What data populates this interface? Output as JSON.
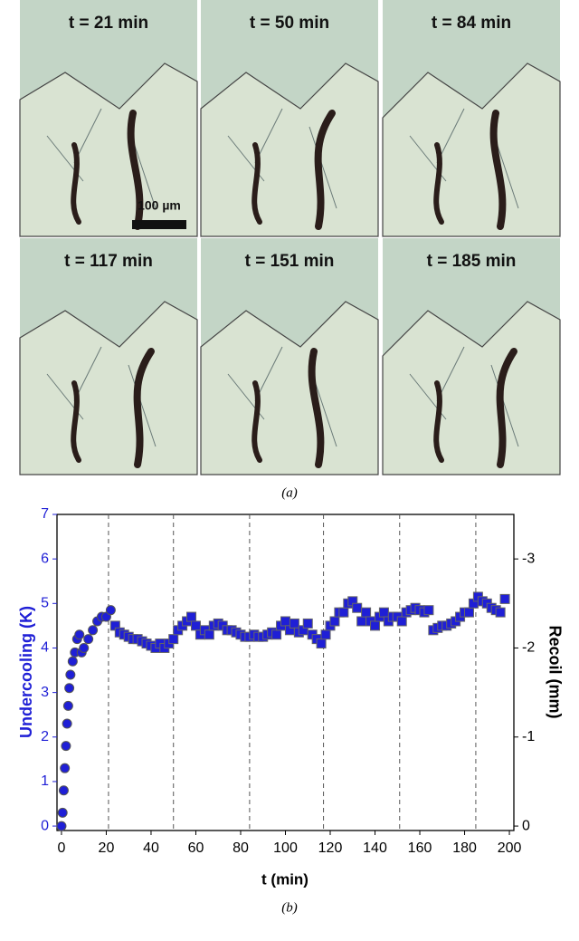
{
  "panel_a": {
    "images": [
      {
        "label": "t = 21 min"
      },
      {
        "label": "t = 50 min"
      },
      {
        "label": "t = 84 min"
      },
      {
        "label": "t = 117 min"
      },
      {
        "label": "t = 151 min"
      },
      {
        "label": "t = 185 min"
      }
    ],
    "scale_bar": "100 µm",
    "caption": "(a)"
  },
  "panel_b_caption": "(b)",
  "chart_data": {
    "type": "scatter",
    "xlabel": "t (min)",
    "ylabel": "Undercooling (K)",
    "y2label": "Recoil (mm)",
    "color": "#1f1fd6",
    "x": [
      0,
      0.5,
      1,
      1.5,
      2,
      2.5,
      3,
      3.5,
      4,
      5,
      6,
      7,
      8,
      9,
      10,
      12,
      14,
      16,
      18,
      20,
      22,
      24,
      26,
      28,
      30,
      32,
      34,
      36,
      38,
      40,
      42,
      44,
      46,
      48,
      50,
      52,
      54,
      56,
      58,
      60,
      62,
      64,
      66,
      68,
      70,
      72,
      74,
      76,
      78,
      80,
      82,
      84,
      86,
      88,
      90,
      92,
      94,
      96,
      98,
      100,
      102,
      104,
      106,
      108,
      110,
      112,
      114,
      116,
      118,
      120,
      122,
      124,
      126,
      128,
      130,
      132,
      134,
      136,
      138,
      140,
      142,
      144,
      146,
      148,
      150,
      152,
      154,
      156,
      158,
      160,
      162,
      164,
      166,
      168,
      170,
      172,
      174,
      176,
      178,
      180,
      182,
      184,
      186,
      188,
      190,
      192,
      194,
      196,
      198
    ],
    "values": [
      0,
      0.3,
      0.8,
      1.3,
      1.8,
      2.3,
      2.7,
      3.1,
      3.4,
      3.7,
      3.9,
      4.2,
      4.3,
      3.9,
      4.0,
      4.2,
      4.4,
      4.6,
      4.7,
      4.7,
      4.85,
      4.5,
      4.35,
      4.3,
      4.25,
      4.2,
      4.2,
      4.15,
      4.1,
      4.05,
      4.0,
      4.1,
      4.0,
      4.1,
      4.2,
      4.4,
      4.5,
      4.6,
      4.7,
      4.5,
      4.3,
      4.4,
      4.3,
      4.5,
      4.55,
      4.5,
      4.4,
      4.4,
      4.35,
      4.3,
      4.25,
      4.25,
      4.3,
      4.25,
      4.25,
      4.3,
      4.35,
      4.3,
      4.5,
      4.6,
      4.4,
      4.55,
      4.35,
      4.4,
      4.55,
      4.3,
      4.2,
      4.1,
      4.3,
      4.5,
      4.6,
      4.8,
      4.8,
      5.0,
      5.05,
      4.9,
      4.6,
      4.8,
      4.6,
      4.5,
      4.7,
      4.8,
      4.6,
      4.7,
      4.7,
      4.6,
      4.8,
      4.85,
      4.9,
      4.85,
      4.8,
      4.85,
      4.4,
      4.45,
      4.5,
      4.5,
      4.55,
      4.6,
      4.7,
      4.8,
      4.8,
      5.0,
      5.15,
      5.05,
      5.0,
      4.9,
      4.85,
      4.8,
      5.1
    ],
    "xlim": [
      -2,
      202
    ],
    "xticks": [
      0,
      20,
      40,
      60,
      80,
      100,
      120,
      140,
      160,
      180,
      200
    ],
    "ylim": [
      -0.1,
      7
    ],
    "yticks": [
      0,
      1,
      2,
      3,
      4,
      5,
      6,
      7
    ],
    "y2lim": [
      0.05,
      -3.5
    ],
    "y2ticks": [
      0,
      -1,
      -2,
      -3
    ],
    "vlines": [
      21,
      50,
      84,
      117,
      151,
      185
    ]
  }
}
